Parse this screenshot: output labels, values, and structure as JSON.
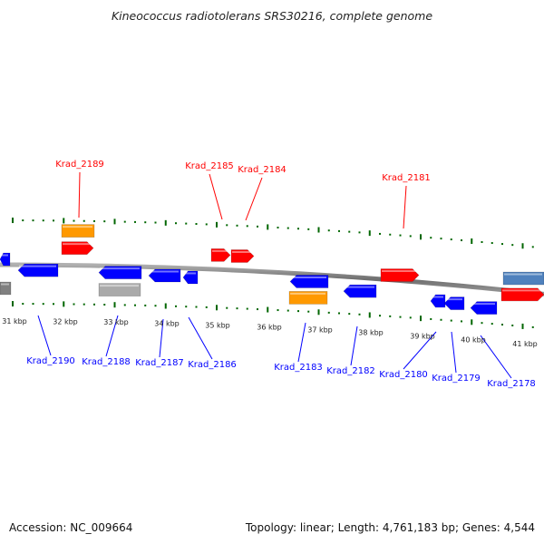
{
  "title": "Kineococcus radiotolerans SRS30216, complete genome",
  "accession": "Accession: NC_009664",
  "summary": "Topology: linear; Length: 4,761,183 bp; Genes: 4,544",
  "colors": {
    "forward_gene": "#ff0000",
    "reverse_gene": "#0000ff",
    "rna_gene": "#ff9900",
    "pseudo_gene": "#aaaaaa",
    "other_gene": "#4f81bd",
    "axis_tick": "#006600",
    "genome_line": "#777777"
  },
  "scale_labels": [
    "31 kbp",
    "32 kbp",
    "33 kbp",
    "34 kbp",
    "35 kbp",
    "36 kbp",
    "37 kbp",
    "38 kbp",
    "39 kbp",
    "40 kbp",
    "41 kbp"
  ],
  "top_labels": [
    "Krad_2189",
    "Krad_2185",
    "Krad_2184",
    "Krad_2181"
  ],
  "bottom_labels": [
    "Krad_2190",
    "Krad_2188",
    "Krad_2187",
    "Krad_2186",
    "Krad_2183",
    "Krad_2182",
    "Krad_2180",
    "Krad_2179",
    "Krad_2178"
  ]
}
